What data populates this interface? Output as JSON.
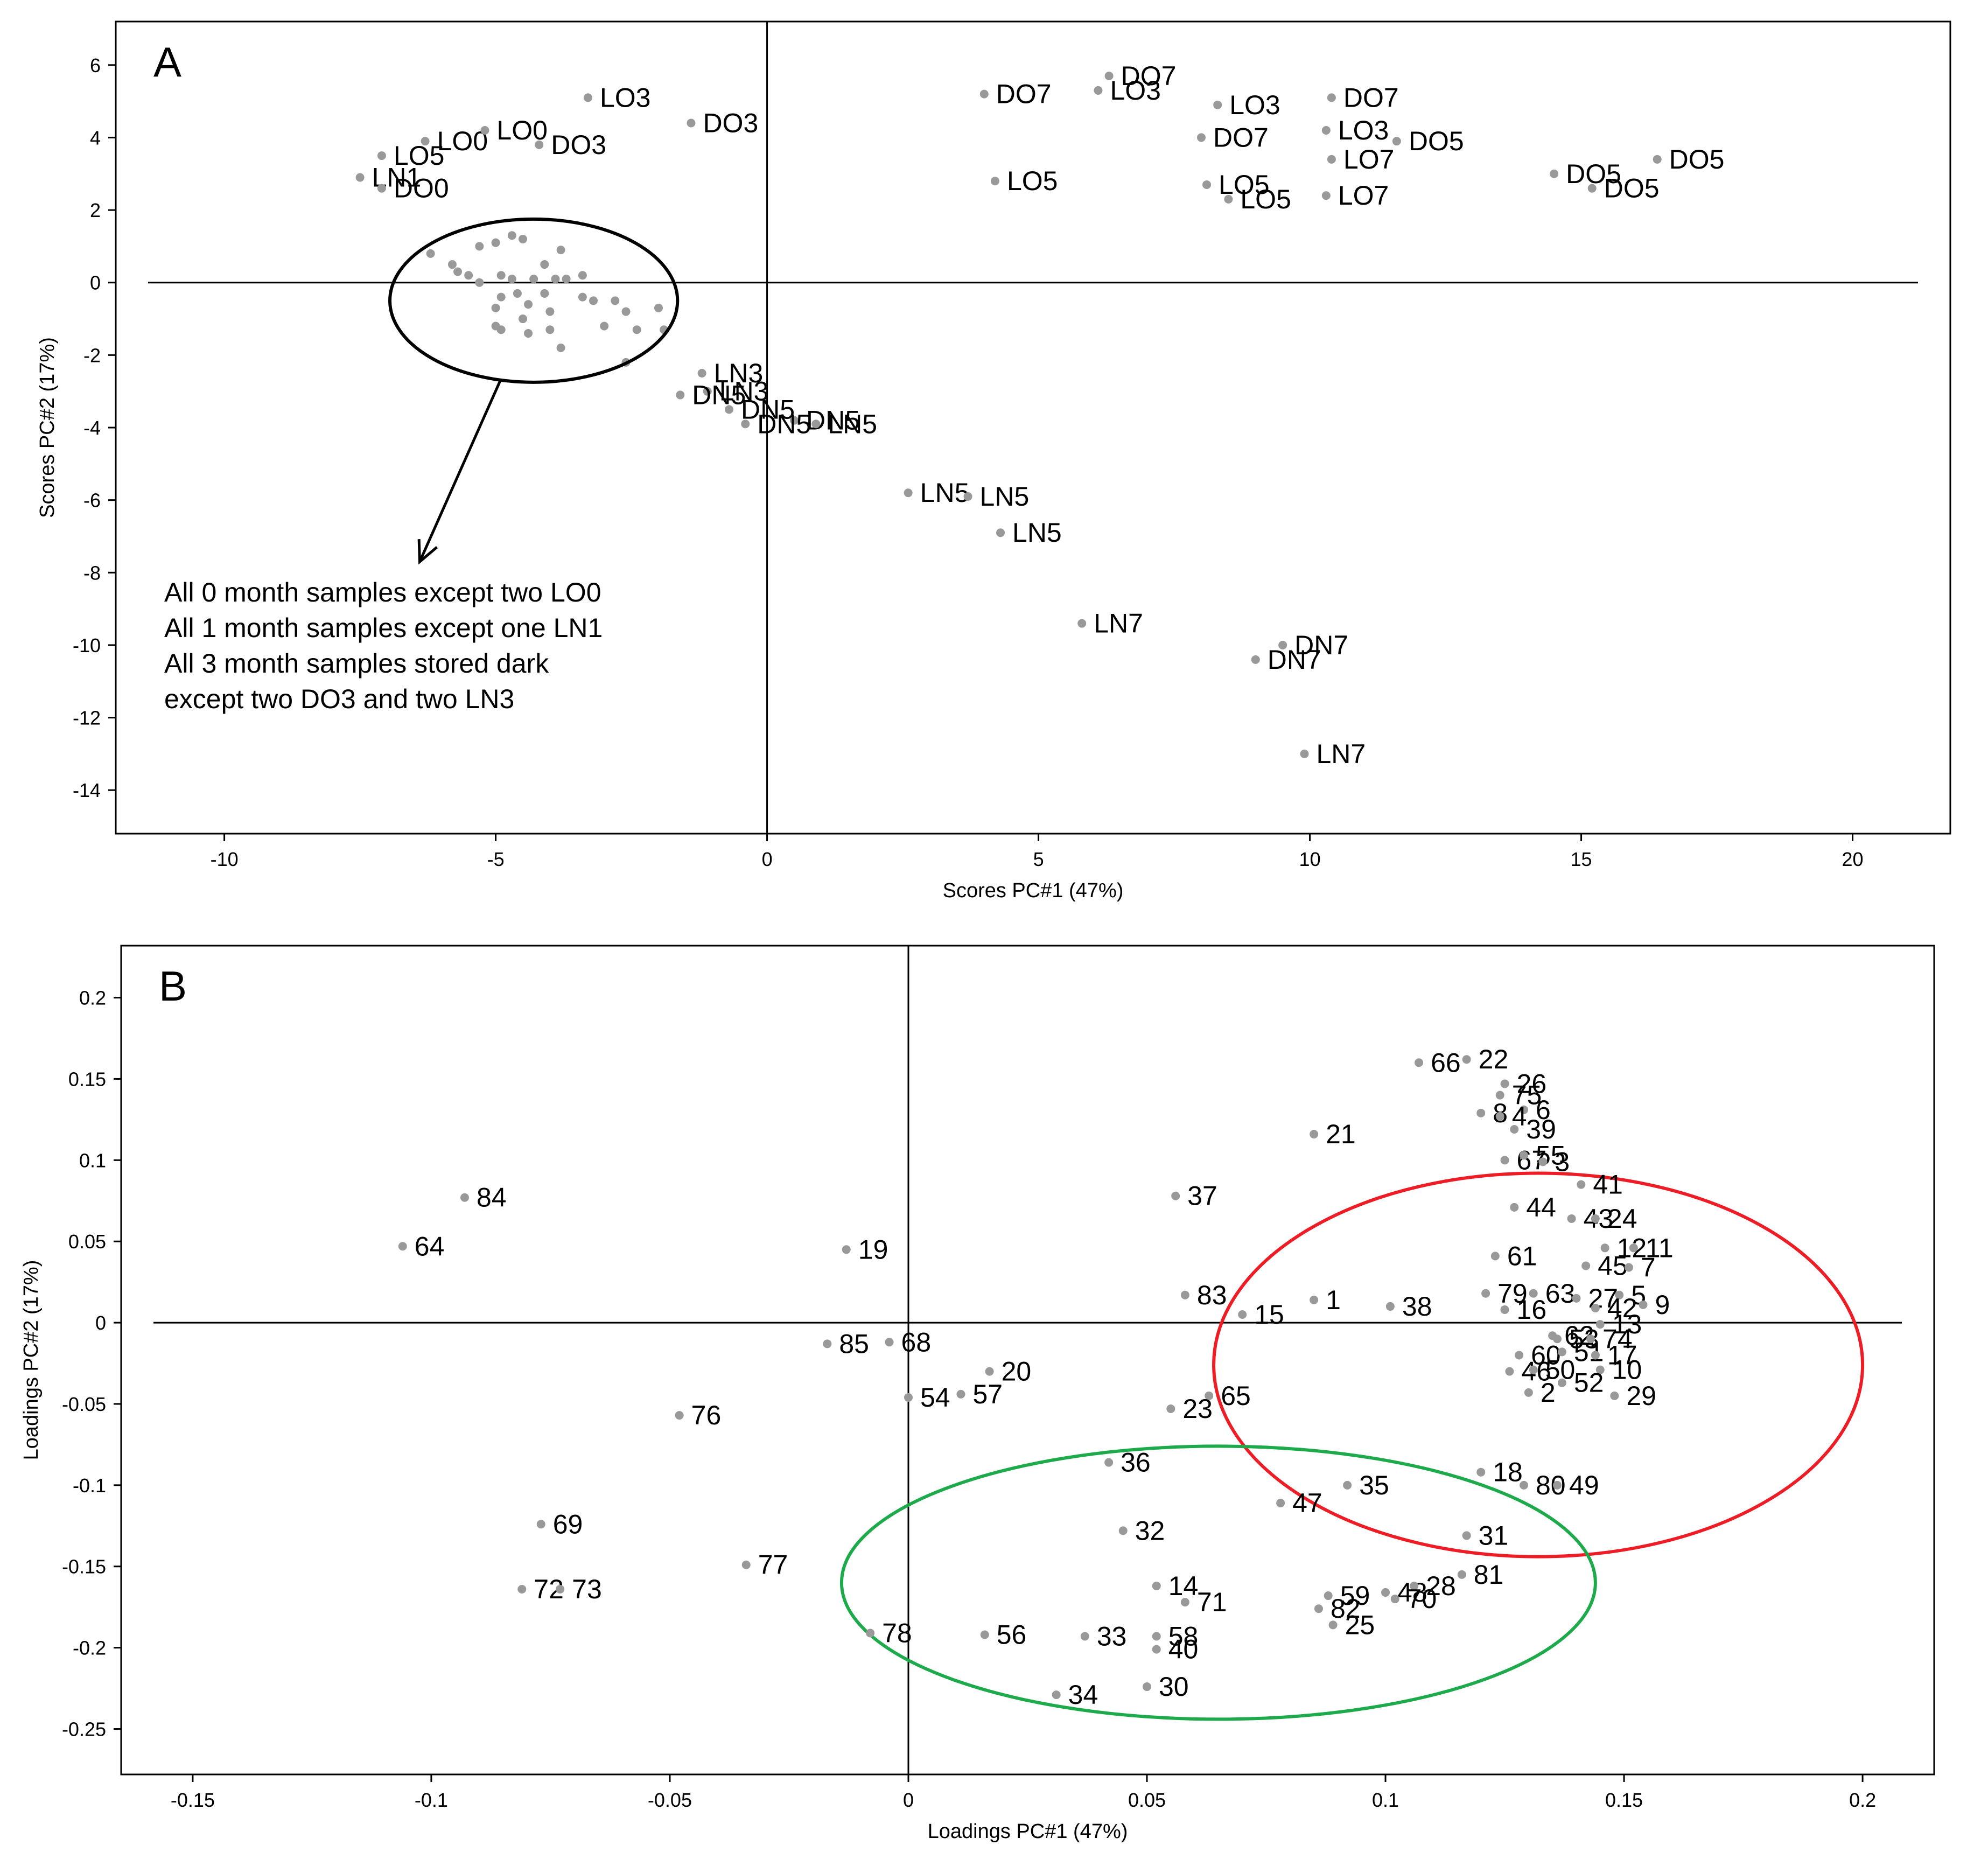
{
  "chart_data": [
    {
      "type": "scatter",
      "panel_label": "A",
      "xlabel": "Scores PC#1 (47%)",
      "ylabel": "Scores PC#2 (17%)",
      "xlim": [
        -12,
        21.8
      ],
      "ylim": [
        -15.2,
        7.2
      ],
      "xticks": [
        -10,
        -5,
        0,
        5,
        10,
        15,
        20
      ],
      "yticks": [
        6,
        4,
        2,
        0,
        -2,
        -4,
        -6,
        -8,
        -10,
        -12,
        -14
      ],
      "point_color": "#999999",
      "crosshair": [
        0,
        0
      ],
      "points": [
        {
          "x": -7.1,
          "y": 3.5,
          "label": "LO5"
        },
        {
          "x": -6.3,
          "y": 3.9,
          "label": "LO0"
        },
        {
          "x": -5.2,
          "y": 4.2,
          "label": "LO0"
        },
        {
          "x": -4.2,
          "y": 3.8,
          "label": "DO3"
        },
        {
          "x": -3.3,
          "y": 5.1,
          "label": "LO3"
        },
        {
          "x": -1.4,
          "y": 4.4,
          "label": "DO3"
        },
        {
          "x": -7.5,
          "y": 2.9,
          "label": "LN1"
        },
        {
          "x": -7.1,
          "y": 2.6,
          "label": "DO0"
        },
        {
          "x": 4.0,
          "y": 5.2,
          "label": "DO7"
        },
        {
          "x": 6.3,
          "y": 5.7,
          "label": "DO7"
        },
        {
          "x": 6.1,
          "y": 5.3,
          "label": "LO3"
        },
        {
          "x": 8.3,
          "y": 4.9,
          "label": "LO3"
        },
        {
          "x": 10.4,
          "y": 5.1,
          "label": "DO7"
        },
        {
          "x": 8.0,
          "y": 4.0,
          "label": "DO7"
        },
        {
          "x": 10.3,
          "y": 4.2,
          "label": "LO3"
        },
        {
          "x": 11.6,
          "y": 3.9,
          "label": "DO5"
        },
        {
          "x": 10.4,
          "y": 3.4,
          "label": "LO7"
        },
        {
          "x": 4.2,
          "y": 2.8,
          "label": "LO5"
        },
        {
          "x": 8.1,
          "y": 2.7,
          "label": "LO5"
        },
        {
          "x": 8.5,
          "y": 2.3,
          "label": "LO5"
        },
        {
          "x": 10.3,
          "y": 2.4,
          "label": "LO7"
        },
        {
          "x": 14.5,
          "y": 3.0,
          "label": "DO5"
        },
        {
          "x": 16.4,
          "y": 3.4,
          "label": "DO5"
        },
        {
          "x": 15.2,
          "y": 2.6,
          "label": "DO5"
        },
        {
          "x": -1.2,
          "y": -2.5,
          "label": "LN3"
        },
        {
          "x": -1.1,
          "y": -3.0,
          "label": "LN3"
        },
        {
          "x": -1.6,
          "y": -3.1,
          "label": "DN5"
        },
        {
          "x": -0.7,
          "y": -3.5,
          "label": "DN5"
        },
        {
          "x": 0.5,
          "y": -3.8,
          "label": "DN5"
        },
        {
          "x": 0.9,
          "y": -3.9,
          "label": "LN5"
        },
        {
          "x": -0.4,
          "y": -3.9,
          "label": "DN5"
        },
        {
          "x": 2.6,
          "y": -5.8,
          "label": "LN5"
        },
        {
          "x": 3.7,
          "y": -5.9,
          "label": "LN5"
        },
        {
          "x": 4.3,
          "y": -6.9,
          "label": "LN5"
        },
        {
          "x": 5.8,
          "y": -9.4,
          "label": "LN7"
        },
        {
          "x": 9.5,
          "y": -10.0,
          "label": "DN7"
        },
        {
          "x": 9.0,
          "y": -10.4,
          "label": "DN7"
        },
        {
          "x": 9.9,
          "y": -13.0,
          "label": "LN7"
        },
        {
          "x": -6.2,
          "y": 0.8,
          "label": ""
        },
        {
          "x": -5.3,
          "y": 1.0,
          "label": ""
        },
        {
          "x": -5.0,
          "y": 1.1,
          "label": ""
        },
        {
          "x": -4.7,
          "y": 1.3,
          "label": ""
        },
        {
          "x": -4.5,
          "y": 1.2,
          "label": ""
        },
        {
          "x": -3.8,
          "y": 0.9,
          "label": ""
        },
        {
          "x": -5.8,
          "y": 0.5,
          "label": ""
        },
        {
          "x": -5.7,
          "y": 0.3,
          "label": ""
        },
        {
          "x": -5.5,
          "y": 0.2,
          "label": ""
        },
        {
          "x": -5.3,
          "y": 0.0,
          "label": ""
        },
        {
          "x": -4.9,
          "y": 0.2,
          "label": ""
        },
        {
          "x": -4.7,
          "y": 0.1,
          "label": ""
        },
        {
          "x": -4.3,
          "y": 0.1,
          "label": ""
        },
        {
          "x": -4.1,
          "y": 0.5,
          "label": ""
        },
        {
          "x": -3.9,
          "y": 0.1,
          "label": ""
        },
        {
          "x": -3.7,
          "y": 0.1,
          "label": ""
        },
        {
          "x": -3.4,
          "y": 0.2,
          "label": ""
        },
        {
          "x": -4.9,
          "y": -0.4,
          "label": ""
        },
        {
          "x": -4.6,
          "y": -0.3,
          "label": ""
        },
        {
          "x": -4.4,
          "y": -0.6,
          "label": ""
        },
        {
          "x": -4.1,
          "y": -0.3,
          "label": ""
        },
        {
          "x": -3.4,
          "y": -0.4,
          "label": ""
        },
        {
          "x": -3.2,
          "y": -0.5,
          "label": ""
        },
        {
          "x": -2.8,
          "y": -0.5,
          "label": ""
        },
        {
          "x": -2.6,
          "y": -0.8,
          "label": ""
        },
        {
          "x": -2.0,
          "y": -0.7,
          "label": ""
        },
        {
          "x": -5.0,
          "y": -0.7,
          "label": ""
        },
        {
          "x": -5.0,
          "y": -1.2,
          "label": ""
        },
        {
          "x": -4.9,
          "y": -1.3,
          "label": ""
        },
        {
          "x": -4.5,
          "y": -1.0,
          "label": ""
        },
        {
          "x": -4.4,
          "y": -1.4,
          "label": ""
        },
        {
          "x": -4.0,
          "y": -1.3,
          "label": ""
        },
        {
          "x": -4.0,
          "y": -0.8,
          "label": ""
        },
        {
          "x": -3.8,
          "y": -1.8,
          "label": ""
        },
        {
          "x": -3.0,
          "y": -1.2,
          "label": ""
        },
        {
          "x": -2.4,
          "y": -1.3,
          "label": ""
        },
        {
          "x": -2.6,
          "y": -2.2,
          "label": ""
        },
        {
          "x": -1.9,
          "y": -1.3,
          "label": ""
        }
      ],
      "annotation": {
        "ellipse": {
          "cx": -4.3,
          "cy": -0.5,
          "rx": 2.65,
          "ry": 2.25
        },
        "arrow_to": [
          -6.4,
          -7.7
        ],
        "lines": [
          "All 0 month samples except two LO0",
          "All 1 month samples except one LN1",
          "All 3 month samples stored dark",
          "except two DO3 and two LN3"
        ],
        "color": "#000000"
      }
    },
    {
      "type": "scatter",
      "panel_label": "B",
      "xlabel": "Loadings PC#1 (47%)",
      "ylabel": "Loadings PC#2 (17%)",
      "xlim": [
        -0.165,
        0.215
      ],
      "ylim": [
        -0.278,
        0.232
      ],
      "xticks": [
        -0.15,
        -0.1,
        -0.05,
        0,
        0.05,
        0.1,
        0.15,
        0.2
      ],
      "xtick_labels": [
        "-0.15",
        "-0.1",
        "-0.05",
        "0",
        "0.05",
        "0.1",
        "0.15",
        "0.2"
      ],
      "yticks": [
        0.2,
        0.15,
        0.1,
        0.05,
        0,
        -0.05,
        -0.1,
        -0.15,
        -0.2,
        -0.25
      ],
      "ytick_labels": [
        "0.2",
        "0.15",
        "0.1",
        "0.05",
        "0",
        "-0.05",
        "-0.1",
        "-0.15",
        "-0.2",
        "-0.25"
      ],
      "point_color": "#999999",
      "crosshair": [
        0,
        0
      ],
      "points": [
        {
          "x": 0.107,
          "y": 0.16,
          "label": "66"
        },
        {
          "x": 0.117,
          "y": 0.162,
          "label": "22"
        },
        {
          "x": 0.124,
          "y": 0.14,
          "label": "75"
        },
        {
          "x": 0.125,
          "y": 0.147,
          "label": "26"
        },
        {
          "x": 0.129,
          "y": 0.131,
          "label": "6"
        },
        {
          "x": 0.12,
          "y": 0.129,
          "label": "8"
        },
        {
          "x": 0.124,
          "y": 0.127,
          "label": "4"
        },
        {
          "x": 0.127,
          "y": 0.119,
          "label": "39"
        },
        {
          "x": 0.085,
          "y": 0.116,
          "label": "21"
        },
        {
          "x": 0.125,
          "y": 0.1,
          "label": "67"
        },
        {
          "x": 0.129,
          "y": 0.103,
          "label": "55"
        },
        {
          "x": 0.133,
          "y": 0.099,
          "label": "3"
        },
        {
          "x": 0.141,
          "y": 0.085,
          "label": "41"
        },
        {
          "x": 0.127,
          "y": 0.071,
          "label": "44"
        },
        {
          "x": 0.139,
          "y": 0.064,
          "label": "43"
        },
        {
          "x": 0.144,
          "y": 0.064,
          "label": "24"
        },
        {
          "x": 0.146,
          "y": 0.046,
          "label": "12"
        },
        {
          "x": 0.152,
          "y": 0.046,
          "label": "11"
        },
        {
          "x": 0.123,
          "y": 0.041,
          "label": "61"
        },
        {
          "x": 0.142,
          "y": 0.035,
          "label": "45"
        },
        {
          "x": 0.151,
          "y": 0.034,
          "label": "7"
        },
        {
          "x": 0.121,
          "y": 0.018,
          "label": "79"
        },
        {
          "x": 0.131,
          "y": 0.018,
          "label": "63"
        },
        {
          "x": 0.14,
          "y": 0.015,
          "label": "27"
        },
        {
          "x": 0.149,
          "y": 0.017,
          "label": "5"
        },
        {
          "x": 0.144,
          "y": 0.009,
          "label": "42"
        },
        {
          "x": 0.154,
          "y": 0.011,
          "label": "9"
        },
        {
          "x": 0.125,
          "y": 0.008,
          "label": "16"
        },
        {
          "x": 0.145,
          "y": -0.001,
          "label": "13"
        },
        {
          "x": 0.135,
          "y": -0.008,
          "label": "62"
        },
        {
          "x": 0.136,
          "y": -0.01,
          "label": "53"
        },
        {
          "x": 0.143,
          "y": -0.01,
          "label": "74"
        },
        {
          "x": 0.128,
          "y": -0.02,
          "label": "60"
        },
        {
          "x": 0.137,
          "y": -0.018,
          "label": "51"
        },
        {
          "x": 0.144,
          "y": -0.02,
          "label": "17"
        },
        {
          "x": 0.126,
          "y": -0.03,
          "label": "46"
        },
        {
          "x": 0.131,
          "y": -0.029,
          "label": "50"
        },
        {
          "x": 0.145,
          "y": -0.029,
          "label": "10"
        },
        {
          "x": 0.137,
          "y": -0.037,
          "label": "52"
        },
        {
          "x": 0.13,
          "y": -0.043,
          "label": "2"
        },
        {
          "x": 0.148,
          "y": -0.045,
          "label": "29"
        },
        {
          "x": 0.101,
          "y": 0.01,
          "label": "38"
        },
        {
          "x": 0.12,
          "y": -0.092,
          "label": "18"
        },
        {
          "x": 0.129,
          "y": -0.1,
          "label": "80"
        },
        {
          "x": 0.136,
          "y": -0.1,
          "label": "49"
        },
        {
          "x": 0.056,
          "y": 0.078,
          "label": "37"
        },
        {
          "x": 0.058,
          "y": 0.017,
          "label": "83"
        },
        {
          "x": 0.07,
          "y": 0.005,
          "label": "15"
        },
        {
          "x": 0.085,
          "y": 0.014,
          "label": "1"
        },
        {
          "x": 0.063,
          "y": -0.045,
          "label": "65"
        },
        {
          "x": 0.055,
          "y": -0.053,
          "label": "23"
        },
        {
          "x": 0.042,
          "y": -0.086,
          "label": "36"
        },
        {
          "x": 0.092,
          "y": -0.1,
          "label": "35"
        },
        {
          "x": 0.078,
          "y": -0.111,
          "label": "47"
        },
        {
          "x": 0.045,
          "y": -0.128,
          "label": "32"
        },
        {
          "x": 0.117,
          "y": -0.131,
          "label": "31"
        },
        {
          "x": 0.088,
          "y": -0.168,
          "label": "59"
        },
        {
          "x": 0.1,
          "y": -0.166,
          "label": "48"
        },
        {
          "x": 0.106,
          "y": -0.162,
          "label": "28"
        },
        {
          "x": 0.116,
          "y": -0.155,
          "label": "81"
        },
        {
          "x": 0.052,
          "y": -0.162,
          "label": "14"
        },
        {
          "x": 0.058,
          "y": -0.172,
          "label": "71"
        },
        {
          "x": 0.086,
          "y": -0.176,
          "label": "82"
        },
        {
          "x": 0.102,
          "y": -0.17,
          "label": "70"
        },
        {
          "x": 0.089,
          "y": -0.186,
          "label": "25"
        },
        {
          "x": 0.052,
          "y": -0.193,
          "label": "58"
        },
        {
          "x": 0.052,
          "y": -0.201,
          "label": "40"
        },
        {
          "x": 0.05,
          "y": -0.224,
          "label": "30"
        },
        {
          "x": 0.031,
          "y": -0.229,
          "label": "34"
        },
        {
          "x": 0.037,
          "y": -0.193,
          "label": "33"
        },
        {
          "x": 0.016,
          "y": -0.192,
          "label": "56"
        },
        {
          "x": -0.008,
          "y": -0.191,
          "label": "78"
        },
        {
          "x": -0.093,
          "y": 0.077,
          "label": "84"
        },
        {
          "x": -0.106,
          "y": 0.047,
          "label": "64"
        },
        {
          "x": -0.013,
          "y": 0.045,
          "label": "19"
        },
        {
          "x": -0.017,
          "y": -0.013,
          "label": "85"
        },
        {
          "x": -0.004,
          "y": -0.012,
          "label": "68"
        },
        {
          "x": 0.017,
          "y": -0.03,
          "label": "20"
        },
        {
          "x": 0.0,
          "y": -0.046,
          "label": "54"
        },
        {
          "x": 0.011,
          "y": -0.044,
          "label": "57"
        },
        {
          "x": -0.048,
          "y": -0.057,
          "label": "76"
        },
        {
          "x": -0.077,
          "y": -0.124,
          "label": "69"
        },
        {
          "x": -0.034,
          "y": -0.149,
          "label": "77"
        },
        {
          "x": -0.081,
          "y": -0.164,
          "label": "72"
        },
        {
          "x": -0.073,
          "y": -0.164,
          "label": "73"
        }
      ],
      "regions": [
        {
          "color": "#ee1c24",
          "cx": 0.132,
          "cy": -0.026,
          "rx": 0.068,
          "ry": 0.118
        },
        {
          "color": "#1caa4a",
          "cx": 0.065,
          "cy": -0.16,
          "rx": 0.079,
          "ry": 0.084
        }
      ]
    }
  ]
}
